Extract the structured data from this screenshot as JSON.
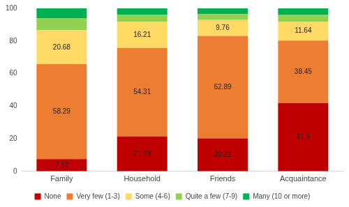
{
  "chart_data": {
    "type": "bar",
    "stacked": true,
    "grid": false,
    "legend": "bottom",
    "categories": [
      "Family",
      "Household",
      "Friends",
      "Acquaintance"
    ],
    "ylim": [
      0,
      100
    ],
    "yticks": [
      0,
      20,
      40,
      60,
      80,
      100
    ],
    "series": [
      {
        "name": "None",
        "color": "#c00000",
        "values": [
          7.52,
          21.38,
          20.21,
          41.8
        ],
        "data_labels": true
      },
      {
        "name": "Very few (1-3)",
        "color": "#ed7d31",
        "values": [
          58.29,
          54.31,
          62.89,
          38.45
        ],
        "data_labels": true
      },
      {
        "name": "Some (4-6)",
        "color": "#ffd966",
        "values": [
          20.68,
          16.21,
          9.76,
          11.64
        ],
        "data_labels": true
      },
      {
        "name": "Quite a few (7-9)",
        "color": "#92d050",
        "values": [
          7.5,
          4.1,
          3.6,
          4.1
        ],
        "data_labels": false
      },
      {
        "name": "Many (10 or more)",
        "color": "#00b050",
        "values": [
          6.0,
          4.0,
          3.5,
          4.0
        ],
        "data_labels": false
      }
    ]
  }
}
